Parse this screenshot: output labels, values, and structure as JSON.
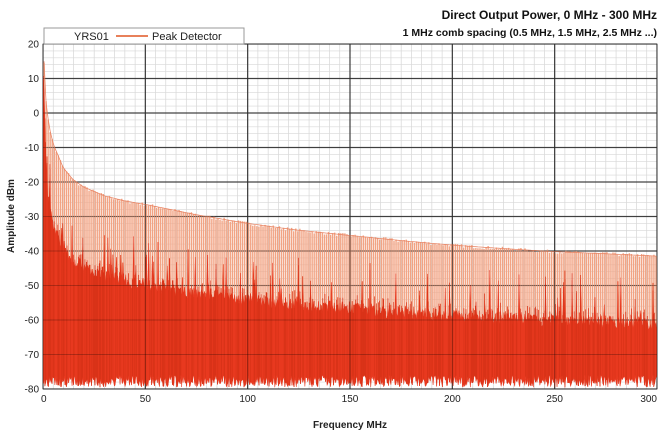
{
  "chart_data": {
    "type": "line",
    "title": "Direct Output Power, 0 MHz - 300 MHz",
    "subtitle": "1 MHz comb spacing (0.5 MHz, 1.5 MHz, 2.5 MHz ...)",
    "xlabel": "Frequency MHz",
    "ylabel": "Amplitude dBm",
    "xlim": [
      0,
      300
    ],
    "ylim": [
      -80,
      20
    ],
    "x_ticks": [
      0,
      50,
      100,
      150,
      200,
      250,
      300
    ],
    "y_ticks": [
      20,
      10,
      0,
      -10,
      -20,
      -30,
      -40,
      -50,
      -60,
      -70,
      -80
    ],
    "grid": true,
    "legend": {
      "position": "top-left",
      "entries": [
        "YRS01",
        "Peak Detector"
      ]
    },
    "series": [
      {
        "name": "Peak Detector",
        "color": "#f0a080",
        "x": [
          0.5,
          1.5,
          3,
          5,
          10,
          15,
          20,
          30,
          40,
          50,
          75,
          100,
          125,
          150,
          175,
          200,
          225,
          250,
          275,
          300
        ],
        "values": [
          15,
          3,
          -4,
          -9,
          -16,
          -19.5,
          -21.5,
          -24,
          -25.5,
          -26.5,
          -29.5,
          -32,
          -34,
          -35.5,
          -37,
          -38.3,
          -39.3,
          -40.2,
          -40.8,
          -41.5
        ]
      },
      {
        "name": "YRS01",
        "color": "#e83a20",
        "x": [
          0.5,
          1.5,
          3,
          5,
          10,
          15,
          20,
          30,
          40,
          50,
          75,
          100,
          125,
          150,
          175,
          200,
          225,
          250,
          275,
          300
        ],
        "values": [
          8,
          -18,
          -27,
          -33,
          -39.5,
          -43,
          -45,
          -47.5,
          -49,
          -50,
          -52.5,
          -54.5,
          -56,
          -57,
          -58,
          -59,
          -59.7,
          -60.3,
          -60.8,
          -61.2
        ]
      }
    ],
    "noise_floor_dbm": -74
  }
}
